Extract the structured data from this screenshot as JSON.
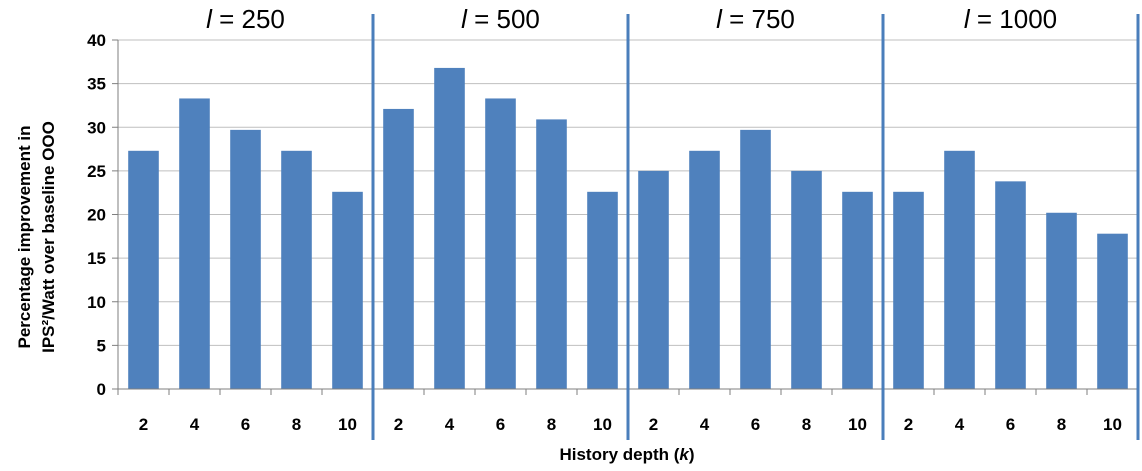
{
  "chart_data": {
    "type": "bar",
    "xlabel": "History depth (k)",
    "xlabel_parts": {
      "prefix": "History depth (",
      "var": "k",
      "suffix": ")"
    },
    "ylabel_lines": [
      "Percentage  improvement in",
      "IPS²/Watt  over baseline OOO"
    ],
    "ylim": [
      0,
      40
    ],
    "yticks": [
      0,
      5,
      10,
      15,
      20,
      25,
      30,
      35,
      40
    ],
    "grid": true,
    "bar_color": "#4f81bd",
    "divider_color": "#4a7ebb",
    "groups": [
      {
        "label_var": "l",
        "label_rest": " = 250",
        "categories": [
          "2",
          "4",
          "6",
          "8",
          "10"
        ],
        "values": [
          27.3,
          33.3,
          29.7,
          27.3,
          22.6
        ]
      },
      {
        "label_var": "l",
        "label_rest": " = 500",
        "categories": [
          "2",
          "4",
          "6",
          "8",
          "10"
        ],
        "values": [
          32.1,
          36.8,
          33.3,
          30.9,
          22.6
        ]
      },
      {
        "label_var": "l",
        "label_rest": " = 750",
        "categories": [
          "2",
          "4",
          "6",
          "8",
          "10"
        ],
        "values": [
          25.0,
          27.3,
          29.7,
          25.0,
          22.6
        ]
      },
      {
        "label_var": "l",
        "label_rest": " = 1000",
        "categories": [
          "2",
          "4",
          "6",
          "8",
          "10"
        ],
        "values": [
          22.6,
          27.3,
          23.8,
          20.2,
          17.8
        ]
      }
    ]
  }
}
